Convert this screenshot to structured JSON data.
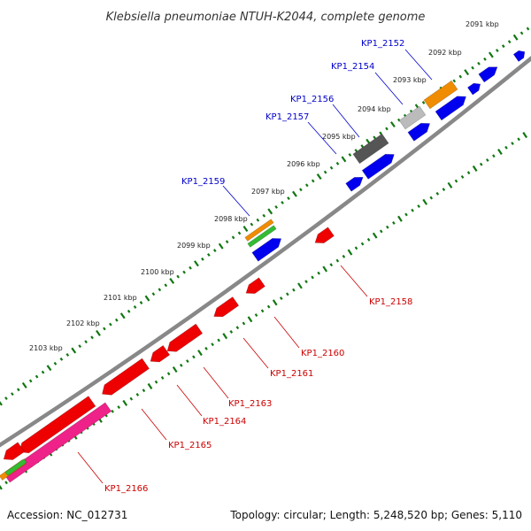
{
  "title": "Klebsiella pneumoniae NTUH-K2044, complete genome",
  "footer": {
    "accession": "Accession: NC_012731",
    "summary": "Topology: circular; Length: 5,248,520 bp; Genes: 5,110"
  },
  "colors": {
    "forward_gene": "#0000ee",
    "reverse_gene": "#ee0000",
    "orange_gene": "#f08c00",
    "green_gene": "#33bb33",
    "pink_gene": "#ee2288",
    "grey_gene": "#555555",
    "light_grey_gene": "#bbbbbb",
    "backbone": "#888888",
    "tick": "#117711",
    "forward_label": "#0000cc",
    "reverse_label": "#cc0000"
  },
  "kbp_ticks": [
    "2091 kbp",
    "2092 kbp",
    "2093 kbp",
    "2094 kbp",
    "2095 kbp",
    "2096 kbp",
    "2097 kbp",
    "2098 kbp",
    "2099 kbp",
    "2100 kbp",
    "2101 kbp",
    "2102 kbp",
    "2103 kbp"
  ],
  "forward_labels": [
    "KP1_2152",
    "KP1_2154",
    "KP1_2156",
    "KP1_2157",
    "KP1_2159"
  ],
  "reverse_labels": [
    "KP1_2158",
    "KP1_2160",
    "KP1_2161",
    "KP1_2163",
    "KP1_2164",
    "KP1_2165",
    "KP1_2166"
  ]
}
